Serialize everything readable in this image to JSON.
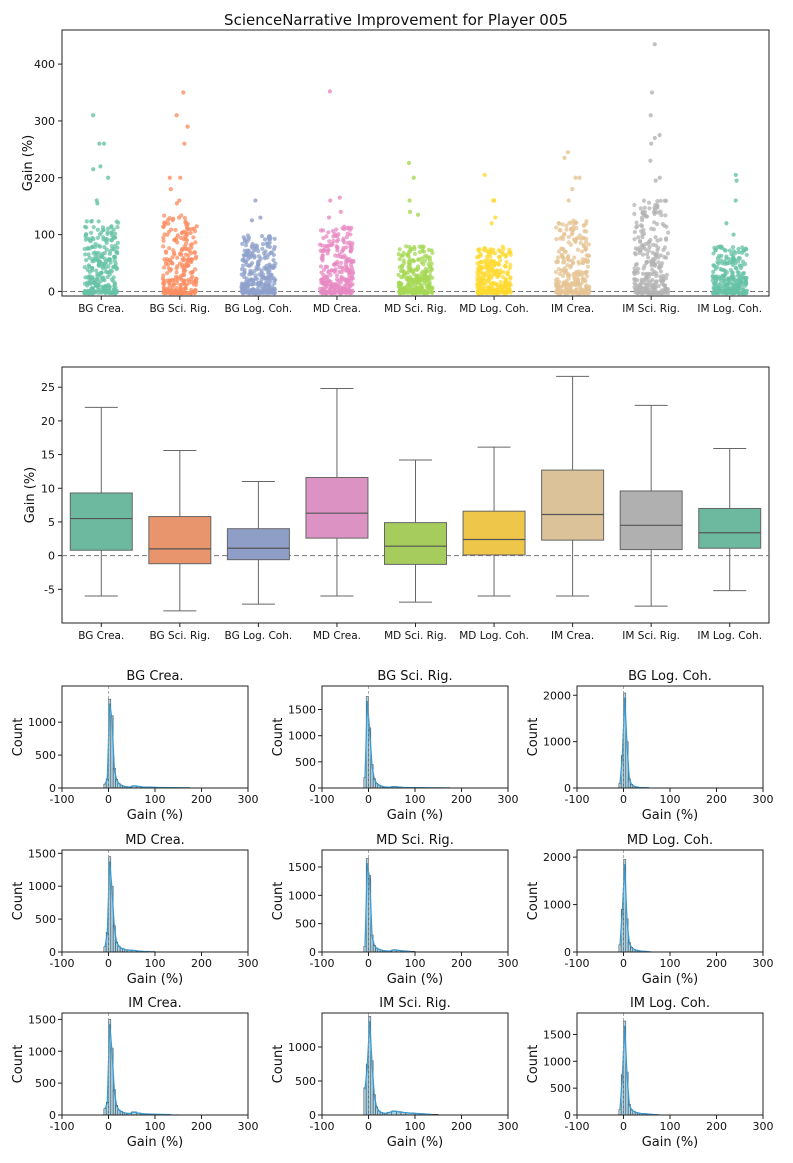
{
  "figure_title": "ScienceNarrative Improvement for Player 005",
  "chart_data": [
    {
      "type": "scatter",
      "subtype": "strip",
      "ylabel": "Gain (%)",
      "ylim": [
        -8,
        460
      ],
      "yticks": [
        0,
        100,
        200,
        300,
        400
      ],
      "reference_line": 0,
      "categories": [
        "BG Crea.",
        "BG Sci. Rig.",
        "BG Log. Coh.",
        "MD Crea.",
        "MD Sci. Rig.",
        "MD Log. Coh.",
        "IM Crea.",
        "IM Sci. Rig.",
        "IM Log. Coh."
      ],
      "colors": [
        "#66c2a5",
        "#fc8d62",
        "#8da0cb",
        "#e78ac3",
        "#a6d854",
        "#ffd92f",
        "#e5c494",
        "#b3b3b3",
        "#66c2a5"
      ],
      "dense_top": [
        125,
        135,
        100,
        115,
        80,
        80,
        125,
        160,
        80
      ],
      "outliers": [
        [
          310,
          260,
          260,
          220,
          215,
          200,
          160,
          155
        ],
        [
          350,
          310,
          290,
          260,
          200,
          200,
          180,
          160,
          155
        ],
        [
          160,
          130,
          125
        ],
        [
          352,
          165,
          160,
          140,
          130
        ],
        [
          226,
          200,
          160,
          140,
          135
        ],
        [
          205,
          160,
          160,
          130,
          120
        ],
        [
          245,
          235,
          200,
          200,
          180,
          160
        ],
        [
          435,
          350,
          310,
          275,
          270,
          260,
          230,
          200,
          195
        ],
        [
          205,
          195,
          160,
          120,
          100
        ]
      ]
    },
    {
      "type": "box",
      "ylabel": "Gain (%)",
      "ylim": [
        -10,
        28
      ],
      "yticks": [
        -5,
        0,
        5,
        10,
        15,
        20,
        25
      ],
      "reference_line": 0,
      "categories": [
        "BG Crea.",
        "BG Sci. Rig.",
        "BG Log. Coh.",
        "MD Crea.",
        "MD Sci. Rig.",
        "MD Log. Coh.",
        "IM Crea.",
        "IM Sci. Rig.",
        "IM Log. Coh."
      ],
      "colors": [
        "#6db9a0",
        "#e8956d",
        "#8e9ec6",
        "#dc92c3",
        "#a5cc5d",
        "#eec64a",
        "#dcc299",
        "#b0b0b0",
        "#6db9a0"
      ],
      "whisker_low": [
        -6,
        -8.2,
        -7.2,
        -6,
        -6.9,
        -6,
        -6,
        -7.5,
        -5.2
      ],
      "q1": [
        0.8,
        -1.2,
        -0.6,
        2.6,
        -1.3,
        0.1,
        2.3,
        0.9,
        1.1
      ],
      "median": [
        5.5,
        1.0,
        1.1,
        6.3,
        1.4,
        2.4,
        6.1,
        4.5,
        3.4
      ],
      "q3": [
        9.3,
        5.8,
        4.0,
        11.6,
        4.9,
        6.6,
        12.7,
        9.6,
        7.0
      ],
      "whisker_high": [
        22,
        15.6,
        11,
        24.8,
        14.2,
        16.1,
        26.6,
        22.3,
        15.9
      ]
    },
    {
      "type": "bar",
      "subtype": "histogram",
      "title": "BG Crea.",
      "xlabel": "Gain (%)",
      "ylabel": "Count",
      "xlim": [
        -100,
        300
      ],
      "xticks": [
        -100,
        0,
        100,
        200,
        300
      ],
      "ylim": [
        0,
        1550
      ],
      "yticks": [
        0,
        500,
        1000
      ],
      "bin_edges": [
        -10,
        -5,
        0,
        5,
        10,
        15,
        20,
        25,
        30,
        35,
        40,
        50,
        60,
        70,
        80,
        100,
        120,
        150,
        200
      ],
      "counts": [
        60,
        140,
        1350,
        1100,
        300,
        130,
        70,
        45,
        30,
        20,
        15,
        35,
        25,
        15,
        12,
        8,
        5,
        3
      ]
    },
    {
      "type": "bar",
      "subtype": "histogram",
      "title": "BG Sci. Rig.",
      "xlabel": "Gain (%)",
      "ylabel": "Count",
      "xlim": [
        -100,
        300
      ],
      "xticks": [
        -100,
        0,
        100,
        200,
        300
      ],
      "ylim": [
        0,
        1950
      ],
      "yticks": [
        0,
        500,
        1000,
        1500
      ],
      "bin_edges": [
        -10,
        -5,
        0,
        5,
        10,
        15,
        20,
        25,
        30,
        35,
        40,
        50,
        60,
        70,
        80,
        100,
        120,
        150,
        200
      ],
      "counts": [
        200,
        1750,
        1150,
        450,
        180,
        90,
        60,
        40,
        25,
        20,
        15,
        30,
        20,
        12,
        8,
        6,
        4,
        2
      ]
    },
    {
      "type": "bar",
      "subtype": "histogram",
      "title": "BG Log. Coh.",
      "xlabel": "Gain (%)",
      "ylabel": "Count",
      "xlim": [
        -100,
        300
      ],
      "xticks": [
        -100,
        0,
        100,
        200,
        300
      ],
      "ylim": [
        0,
        2200
      ],
      "yticks": [
        0,
        1000,
        2000
      ],
      "bin_edges": [
        -10,
        -5,
        0,
        5,
        10,
        15,
        20,
        25,
        30,
        35,
        40,
        50,
        60
      ],
      "counts": [
        100,
        700,
        2050,
        1000,
        200,
        80,
        40,
        25,
        15,
        10,
        8,
        5
      ]
    },
    {
      "type": "bar",
      "subtype": "histogram",
      "title": "MD Crea.",
      "xlabel": "Gain (%)",
      "ylabel": "Count",
      "xlim": [
        -100,
        300
      ],
      "xticks": [
        -100,
        0,
        100,
        200,
        300
      ],
      "ylim": [
        0,
        1550
      ],
      "yticks": [
        0,
        500,
        1000,
        1500
      ],
      "bin_edges": [
        -10,
        -5,
        0,
        5,
        10,
        15,
        20,
        25,
        30,
        35,
        40,
        50,
        60,
        70,
        80,
        100
      ],
      "counts": [
        80,
        300,
        1450,
        1000,
        400,
        150,
        90,
        60,
        50,
        35,
        30,
        25,
        15,
        10,
        8
      ]
    },
    {
      "type": "bar",
      "subtype": "histogram",
      "title": "MD Sci. Rig.",
      "xlabel": "Gain (%)",
      "ylabel": "Count",
      "xlim": [
        -100,
        300
      ],
      "xticks": [
        -100,
        0,
        100,
        200,
        300
      ],
      "ylim": [
        0,
        1800
      ],
      "yticks": [
        0,
        500,
        1000,
        1500
      ],
      "bin_edges": [
        -10,
        -5,
        0,
        5,
        10,
        15,
        20,
        25,
        30,
        35,
        40,
        50,
        60,
        70,
        80,
        100
      ],
      "counts": [
        100,
        1650,
        1350,
        300,
        120,
        70,
        50,
        35,
        25,
        20,
        15,
        40,
        30,
        20,
        12
      ]
    },
    {
      "type": "bar",
      "subtype": "histogram",
      "title": "MD Log. Coh.",
      "xlabel": "Gain (%)",
      "ylabel": "Count",
      "xlim": [
        -100,
        300
      ],
      "xticks": [
        -100,
        0,
        100,
        200,
        300
      ],
      "ylim": [
        0,
        2150
      ],
      "yticks": [
        0,
        1000,
        2000
      ],
      "bin_edges": [
        -10,
        -5,
        0,
        5,
        10,
        15,
        20,
        25,
        30,
        35,
        40,
        50,
        60
      ],
      "counts": [
        150,
        900,
        1950,
        700,
        200,
        100,
        60,
        40,
        30,
        20,
        15,
        8
      ]
    },
    {
      "type": "bar",
      "subtype": "histogram",
      "title": "IM Crea.",
      "xlabel": "Gain (%)",
      "ylabel": "Count",
      "xlim": [
        -100,
        300
      ],
      "xticks": [
        -100,
        0,
        100,
        200,
        300
      ],
      "ylim": [
        0,
        1600
      ],
      "yticks": [
        0,
        500,
        1000,
        1500
      ],
      "bin_edges": [
        -10,
        -5,
        0,
        5,
        10,
        15,
        20,
        25,
        30,
        35,
        40,
        50,
        60,
        70,
        80,
        100,
        120,
        150
      ],
      "counts": [
        100,
        200,
        1500,
        1050,
        400,
        150,
        80,
        60,
        40,
        30,
        25,
        50,
        30,
        20,
        15,
        10,
        5
      ]
    },
    {
      "type": "bar",
      "subtype": "histogram",
      "title": "IM Sci. Rig.",
      "xlabel": "Gain (%)",
      "ylabel": "Count",
      "xlim": [
        -100,
        300
      ],
      "xticks": [
        -100,
        0,
        100,
        200,
        300
      ],
      "ylim": [
        0,
        1500
      ],
      "yticks": [
        0,
        500,
        1000
      ],
      "bin_edges": [
        -10,
        -5,
        0,
        5,
        10,
        15,
        20,
        25,
        30,
        35,
        40,
        50,
        60,
        70,
        80,
        100,
        120,
        150
      ],
      "counts": [
        400,
        750,
        1450,
        800,
        300,
        120,
        60,
        40,
        30,
        25,
        40,
        60,
        50,
        40,
        30,
        20,
        10
      ]
    },
    {
      "type": "bar",
      "subtype": "histogram",
      "title": "IM Log. Coh.",
      "xlabel": "Gain (%)",
      "ylabel": "Count",
      "xlim": [
        -100,
        300
      ],
      "xticks": [
        -100,
        0,
        100,
        200,
        300
      ],
      "ylim": [
        0,
        1900
      ],
      "yticks": [
        0,
        500,
        1000,
        1500
      ],
      "bin_edges": [
        -10,
        -5,
        0,
        5,
        10,
        15,
        20,
        25,
        30,
        35,
        40,
        50,
        60,
        70,
        80
      ],
      "counts": [
        100,
        750,
        1750,
        800,
        200,
        100,
        70,
        50,
        40,
        30,
        25,
        15,
        10,
        5
      ]
    }
  ]
}
